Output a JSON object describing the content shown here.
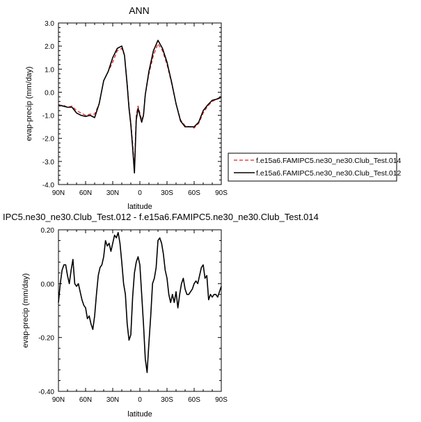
{
  "chart_data": [
    {
      "type": "line",
      "title": "ANN",
      "xlabel": "latitude",
      "ylabel": "evap-precip (mm/day)",
      "x_tick_labels": [
        "90N",
        "60N",
        "30N",
        "0",
        "30S",
        "60S",
        "90S"
      ],
      "x_tick_values": [
        90,
        60,
        30,
        0,
        -30,
        -60,
        -90
      ],
      "xlim": [
        90,
        -90
      ],
      "ylim": [
        -4.0,
        3.0
      ],
      "y_tick_values": [
        -4.0,
        -3.0,
        -2.0,
        -1.0,
        0.0,
        1.0,
        2.0,
        3.0
      ],
      "y_tick_labels": [
        "-4.0",
        "-3.0",
        "-2.0",
        "-1.0",
        "0.0",
        "1.0",
        "2.0",
        "3.0"
      ],
      "grid": false,
      "legend_position": "right, outside plot",
      "x": [
        90,
        85,
        80,
        75,
        70,
        65,
        60,
        55,
        50,
        45,
        40,
        35,
        30,
        25,
        20,
        17,
        14,
        12,
        10,
        8,
        6,
        4,
        2,
        0,
        -2,
        -4,
        -6,
        -10,
        -15,
        -20,
        -25,
        -30,
        -35,
        -40,
        -45,
        -50,
        -55,
        -60,
        -65,
        -70,
        -75,
        -80,
        -85,
        -90
      ],
      "series": [
        {
          "name": "f.e15a6.FAMIPC5.ne30_ne30.Club_Test.014",
          "color": "#e02020",
          "dash": "dashed",
          "values": [
            -0.6,
            -0.55,
            -0.65,
            -0.6,
            -0.8,
            -0.9,
            -1.0,
            -0.95,
            -0.95,
            -0.5,
            0.5,
            0.9,
            1.3,
            1.8,
            1.9,
            1.6,
            0.4,
            -0.6,
            -1.3,
            -2.2,
            -3.3,
            -1.0,
            -0.6,
            -0.9,
            -1.2,
            -1.0,
            -0.1,
            0.8,
            1.6,
            2.1,
            1.8,
            1.2,
            0.4,
            -0.5,
            -1.2,
            -1.45,
            -1.5,
            -1.55,
            -1.35,
            -0.9,
            -0.6,
            -0.4,
            -0.3,
            -0.25
          ]
        },
        {
          "name": "f.e15a6.FAMIPC5.ne30_ne30.Club_Test.012",
          "color": "#000000",
          "dash": "solid",
          "values": [
            -0.55,
            -0.6,
            -0.65,
            -0.65,
            -0.9,
            -1.0,
            -1.05,
            -1.0,
            -1.1,
            -0.5,
            0.5,
            0.9,
            1.5,
            1.9,
            2.0,
            1.6,
            0.3,
            -0.7,
            -1.4,
            -2.4,
            -3.5,
            -1.2,
            -0.7,
            -1.0,
            -1.3,
            -1.0,
            -0.1,
            0.9,
            1.8,
            2.25,
            1.9,
            1.3,
            0.45,
            -0.5,
            -1.25,
            -1.5,
            -1.5,
            -1.5,
            -1.3,
            -0.8,
            -0.55,
            -0.35,
            -0.3,
            -0.2
          ]
        }
      ]
    },
    {
      "type": "line",
      "title": "IPC5.ne30_ne30.Club_Test.012 - f.e15a6.FAMIPC5.ne30_ne30.Club_Test.014",
      "xlabel": "latitude",
      "ylabel": "evap-precip (mm/day)",
      "x_tick_labels": [
        "90N",
        "60N",
        "30N",
        "0",
        "30S",
        "60S",
        "90S"
      ],
      "x_tick_values": [
        90,
        60,
        30,
        0,
        -30,
        -60,
        -90
      ],
      "xlim": [
        90,
        -90
      ],
      "ylim": [
        -0.4,
        0.2
      ],
      "y_tick_values": [
        -0.4,
        -0.2,
        0.0,
        0.2
      ],
      "y_tick_labels": [
        "-0.40",
        "-0.20",
        "0.00",
        "0.20"
      ],
      "grid": false,
      "x": [
        90,
        88,
        86,
        84,
        82,
        80,
        78,
        76,
        74,
        72,
        70,
        68,
        66,
        64,
        62,
        60,
        58,
        56,
        54,
        52,
        50,
        48,
        46,
        44,
        42,
        40,
        38,
        36,
        34,
        32,
        30,
        28,
        26,
        24,
        22,
        20,
        18,
        16,
        14,
        12,
        10,
        8,
        6,
        4,
        2,
        0,
        -2,
        -4,
        -6,
        -8,
        -10,
        -12,
        -14,
        -16,
        -18,
        -20,
        -22,
        -24,
        -26,
        -28,
        -30,
        -32,
        -34,
        -36,
        -38,
        -40,
        -42,
        -44,
        -46,
        -48,
        -50,
        -52,
        -54,
        -56,
        -58,
        -60,
        -62,
        -64,
        -66,
        -68,
        -70,
        -72,
        -74,
        -76,
        -78,
        -80,
        -82,
        -84,
        -86,
        -88,
        -90
      ],
      "series": [
        {
          "name": "",
          "color": "#000000",
          "dash": "solid",
          "values": [
            -0.07,
            0.0,
            0.05,
            0.07,
            0.07,
            0.03,
            0.0,
            0.05,
            0.09,
            0.0,
            -0.01,
            0.0,
            -0.03,
            -0.06,
            -0.08,
            -0.09,
            -0.13,
            -0.12,
            -0.15,
            -0.17,
            -0.12,
            -0.04,
            0.03,
            0.06,
            0.07,
            0.1,
            0.16,
            0.14,
            0.15,
            0.12,
            0.15,
            0.18,
            0.17,
            0.19,
            0.15,
            0.08,
            0.0,
            -0.04,
            -0.15,
            -0.21,
            -0.19,
            -0.05,
            0.04,
            0.08,
            0.1,
            0.07,
            -0.04,
            -0.15,
            -0.28,
            -0.33,
            -0.22,
            -0.12,
            0.0,
            0.02,
            0.06,
            0.16,
            0.17,
            0.15,
            0.11,
            0.05,
            0.02,
            -0.04,
            -0.07,
            -0.04,
            -0.07,
            -0.03,
            -0.09,
            -0.04,
            0.0,
            0.02,
            -0.02,
            -0.04,
            -0.04,
            -0.03,
            -0.02,
            0.0,
            0.01,
            0.0,
            0.03,
            0.06,
            0.07,
            0.02,
            0.03,
            -0.06,
            -0.04,
            -0.05,
            -0.04,
            -0.04,
            -0.05,
            -0.03,
            -0.01
          ]
        }
      ]
    }
  ]
}
